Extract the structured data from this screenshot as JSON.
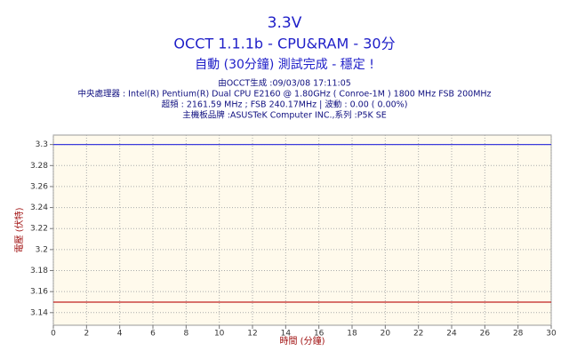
{
  "chart_data": {
    "type": "line",
    "title": "3.3V",
    "subtitle": "OCCT 1.1.1b - CPU&RAM - 30分",
    "status": "自動 (30分鐘) 測試完成 - 穩定 !",
    "notes": [
      "由OCCT生成 :09/03/08 17:11:05",
      "中央處理器 : Intel(R) Pentium(R) Dual CPU E2160 @ 1.80GHz ( Conroe-1M ) 1800 MHz FSB 200MHz",
      "超頻 : 2161.59 MHz ; FSB 240.17MHz | 波動 : 0.00 ( 0.00%)",
      "主機板品牌 :ASUSTeK Computer INC.,系列 :P5K SE"
    ],
    "x_label": "時間 (分鐘)",
    "y_label": "電壓 (伏特)",
    "x": [
      0,
      30
    ],
    "series": [
      {
        "color": "#3c3cdc",
        "values": [
          3.3,
          3.3
        ]
      },
      {
        "color": "#c02020",
        "values": [
          3.15,
          3.15
        ]
      }
    ],
    "xlim": [
      0,
      30
    ],
    "xticks": [
      0,
      2,
      4,
      6,
      8,
      10,
      12,
      14,
      16,
      18,
      20,
      22,
      24,
      26,
      28,
      30
    ],
    "ylim": [
      3.128,
      3.309
    ],
    "yticks": [
      3.14,
      3.16,
      3.18,
      3.2,
      3.22,
      3.24,
      3.26,
      3.28,
      3.3
    ],
    "grid": true
  }
}
